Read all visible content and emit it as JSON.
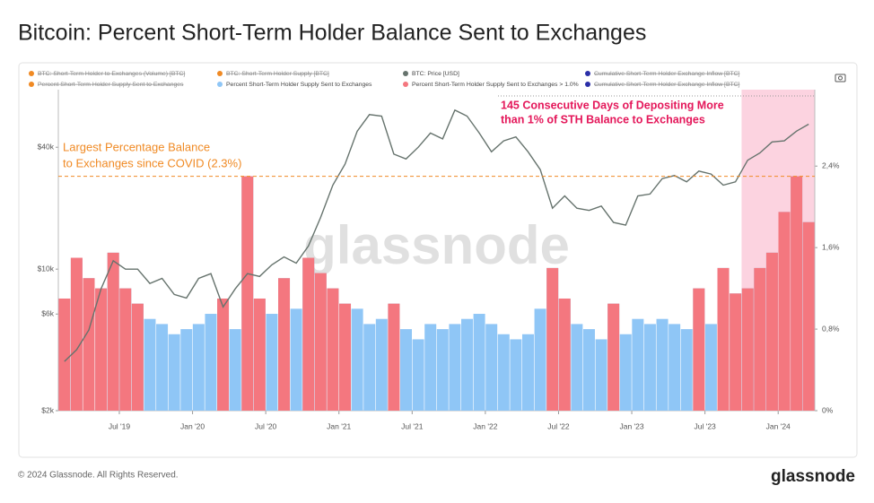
{
  "chart_data": {
    "type": "combo",
    "title": "Bitcoin: Percent Short-Term Holder Balance Sent to Exchanges",
    "watermark": "glassnode",
    "footer": "© 2024 Glassnode. All Rights Reserved.",
    "logo": "glassnode",
    "x": [
      "2019-02",
      "2019-03",
      "2019-04",
      "2019-05",
      "2019-06",
      "2019-07",
      "2019-08",
      "2019-09",
      "2019-10",
      "2019-11",
      "2019-12",
      "2020-01",
      "2020-02",
      "2020-03",
      "2020-04",
      "2020-05",
      "2020-06",
      "2020-07",
      "2020-08",
      "2020-09",
      "2020-10",
      "2020-11",
      "2020-12",
      "2021-01",
      "2021-02",
      "2021-03",
      "2021-04",
      "2021-05",
      "2021-06",
      "2021-07",
      "2021-08",
      "2021-09",
      "2021-10",
      "2021-11",
      "2021-12",
      "2022-01",
      "2022-02",
      "2022-03",
      "2022-04",
      "2022-05",
      "2022-06",
      "2022-07",
      "2022-08",
      "2022-09",
      "2022-10",
      "2022-11",
      "2022-12",
      "2023-01",
      "2023-02",
      "2023-03",
      "2023-04",
      "2023-05",
      "2023-06",
      "2023-07",
      "2023-08",
      "2023-09",
      "2023-10",
      "2023-11",
      "2023-12",
      "2024-01",
      "2024-02",
      "2024-03"
    ],
    "xticks": [
      {
        "value": "2019-07",
        "label": "Jul '19"
      },
      {
        "value": "2020-01",
        "label": "Jan '20"
      },
      {
        "value": "2020-07",
        "label": "Jul '20"
      },
      {
        "value": "2021-01",
        "label": "Jan '21"
      },
      {
        "value": "2021-07",
        "label": "Jul '21"
      },
      {
        "value": "2022-01",
        "label": "Jan '22"
      },
      {
        "value": "2022-07",
        "label": "Jul '22"
      },
      {
        "value": "2023-01",
        "label": "Jan '23"
      },
      {
        "value": "2023-07",
        "label": "Jul '23"
      },
      {
        "value": "2024-01",
        "label": "Jan '24"
      }
    ],
    "ylim": [
      2000,
      77000
    ],
    "log_scale": true,
    "yticks": [
      {
        "value": 2000,
        "label": "$2k"
      },
      {
        "value": 6000,
        "label": "$6k"
      },
      {
        "value": 10000,
        "label": "$10k"
      },
      {
        "value": 40000,
        "label": "$40k"
      }
    ],
    "y2lim": [
      0,
      3.15
    ],
    "y2ticks": [
      {
        "value": 0,
        "label": "0%"
      },
      {
        "value": 0.8,
        "label": "0,8%"
      },
      {
        "value": 1.6,
        "label": "1,6%"
      },
      {
        "value": 2.4,
        "label": "2,4%"
      }
    ],
    "series": [
      {
        "name": "BTC: Price [USD]",
        "color": "#66736d",
        "type": "line",
        "values": [
          3500,
          4000,
          5000,
          8000,
          11000,
          10000,
          10000,
          8500,
          9000,
          7500,
          7200,
          9000,
          9500,
          6500,
          8000,
          9500,
          9200,
          10500,
          11500,
          10700,
          13000,
          18000,
          26000,
          33000,
          48000,
          58000,
          57000,
          37000,
          35000,
          40000,
          47000,
          44000,
          61000,
          57000,
          47000,
          38000,
          43000,
          45000,
          38000,
          31000,
          20000,
          23000,
          20000,
          19500,
          20500,
          17000,
          16500,
          23000,
          23500,
          28000,
          29000,
          27000,
          30500,
          29500,
          26000,
          27000,
          34500,
          37500,
          42500,
          43000,
          48000,
          52000
        ]
      },
      {
        "name": "Percent Short-Term Holder Supply Sent to Exchanges",
        "color": "#8fc6f6",
        "type": "bar",
        "axis": "y2",
        "values": [
          1.1,
          1.5,
          1.3,
          1.2,
          1.55,
          1.2,
          1.05,
          0.9,
          0.85,
          0.75,
          0.8,
          0.85,
          0.95,
          1.1,
          0.8,
          2.3,
          1.1,
          0.95,
          1.3,
          1.0,
          1.5,
          1.35,
          1.2,
          1.05,
          1.0,
          0.85,
          0.9,
          1.05,
          0.8,
          0.7,
          0.85,
          0.8,
          0.85,
          0.9,
          0.95,
          0.85,
          0.75,
          0.7,
          0.75,
          1.0,
          1.4,
          1.1,
          0.85,
          0.8,
          0.7,
          1.05,
          0.75,
          0.9,
          0.85,
          0.9,
          0.85,
          0.8,
          1.2,
          0.85,
          1.4,
          1.15,
          1.2,
          1.4,
          1.55,
          1.95,
          2.3,
          1.85
        ]
      },
      {
        "name": "Percent Short-Term Holder Supply Sent to Exchanges > 1.0%",
        "color": "#f4777f",
        "type": "bar",
        "axis": "y2",
        "values": [
          1.1,
          1.5,
          1.3,
          1.2,
          1.55,
          1.2,
          1.05,
          null,
          null,
          null,
          null,
          null,
          null,
          1.1,
          null,
          2.3,
          1.1,
          null,
          1.3,
          null,
          1.5,
          1.35,
          1.2,
          1.05,
          null,
          null,
          null,
          1.05,
          null,
          null,
          null,
          null,
          null,
          null,
          null,
          null,
          null,
          null,
          null,
          null,
          1.4,
          1.1,
          null,
          null,
          null,
          1.05,
          null,
          null,
          null,
          null,
          null,
          null,
          1.2,
          null,
          1.4,
          1.15,
          1.2,
          1.4,
          1.55,
          1.95,
          2.3,
          1.85
        ]
      }
    ],
    "legend_hidden": [
      {
        "name": "BTC: Short-Term Holder to Exchanges (Volume) [BTC]",
        "color": "#f08a24"
      },
      {
        "name": "BTC: Short-Term Holder Supply [BTC]",
        "color": "#f08a24"
      },
      {
        "name": "Cumulative Short-Term Holder Exchange Inflow [BTC]",
        "color": "#2b2fa8"
      },
      {
        "name": "Percent Short-Term Holder Supply Sent to Exchanges",
        "color": "#f08a24"
      },
      {
        "name": "Cumulative Short-Term Holder Exchange Inflow [BTC]",
        "color": "#2b2fa8"
      }
    ],
    "reference_line": {
      "value": 2.3,
      "axis": "y2",
      "color": "#f08a24",
      "text": [
        "Largest Percentage Balance",
        "to Exchanges since COVID (2.3%)"
      ]
    },
    "highlight": {
      "from": "2023-10",
      "to": "2024-03",
      "color": "#fcd3e0",
      "text": [
        "145 Consecutive Days of Depositing More",
        "than 1% of STH Balance to Exchanges"
      ],
      "text_color": "#e4175a"
    }
  }
}
